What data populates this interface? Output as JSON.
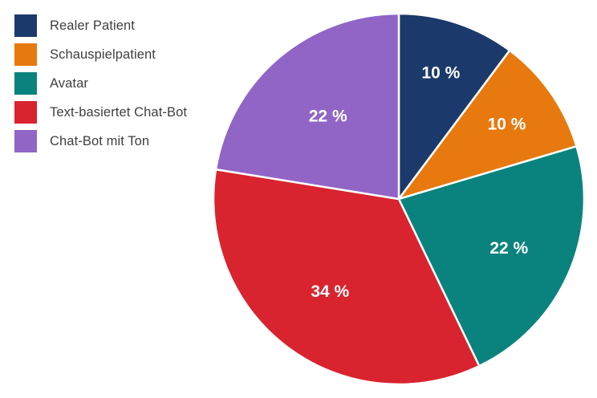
{
  "chart_data": {
    "type": "pie",
    "categories": [
      "Realer Patient",
      "Schauspielpatient",
      "Avatar",
      "Text-basiertet Chat-Bot",
      "Chat-Bot mit Ton"
    ],
    "values": [
      10,
      10,
      22,
      34,
      22
    ],
    "slice_labels": [
      "10 %",
      "10 %",
      "22 %",
      "34 %",
      "22 %"
    ],
    "colors": [
      "#1b3a6b",
      "#e8790f",
      "#0a837e",
      "#d9232e",
      "#9165c6"
    ],
    "start_angle_deg": 0,
    "direction": "clockwise",
    "values_sum": 98,
    "legend_position": "top-left",
    "legend_text_color": "#3f3f3f",
    "slice_separator_color": "#ffffff",
    "slice_label_color": "#ffffff",
    "label_radius_factor": [
      0.72,
      0.71,
      0.65,
      0.62,
      0.59
    ],
    "title": "",
    "grid": false
  }
}
